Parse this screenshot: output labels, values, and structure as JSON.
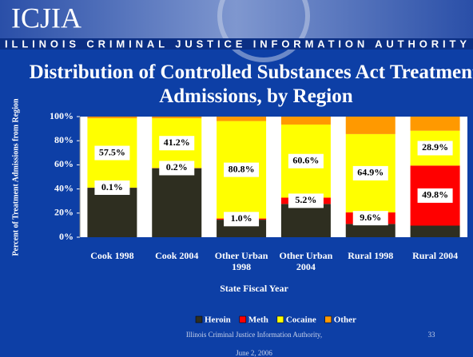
{
  "header": {
    "logo": "ICJIA",
    "organization": "ILLINOIS CRIMINAL JUSTICE INFORMATION AUTHORITY"
  },
  "chart_data": {
    "type": "stacked_bar",
    "title": "Distribution of Controlled Substances Act Treatment Admissions, by Region",
    "y_label": "Percent of Treatment Admissions from Region",
    "x_label": "State Fiscal Year",
    "categories": [
      "Cook 1998",
      "Cook 2004",
      "Other Urban 1998",
      "Other Urban 2004",
      "Rural 1998",
      "Rural 2004"
    ],
    "series": [
      {
        "name": "Heroin",
        "color": "#2e2e20",
        "values": [
          41.0,
          57.2,
          14.5,
          27.6,
          11.0,
          9.6
        ]
      },
      {
        "name": "Meth",
        "color": "#ff0000",
        "values": [
          0.1,
          0.2,
          1.0,
          5.2,
          9.6,
          49.8
        ],
        "value_labels": [
          "0.1%",
          "0.2%",
          "1.0%",
          "5.2%",
          "9.6%",
          "49.8%"
        ]
      },
      {
        "name": "Cocaine",
        "color": "#ffff00",
        "values": [
          57.5,
          41.2,
          80.8,
          60.6,
          64.9,
          28.9
        ],
        "value_labels": [
          "57.5%",
          "41.2%",
          "80.8%",
          "60.6%",
          "64.9%",
          "28.9%"
        ]
      },
      {
        "name": "Other",
        "color": "#ff9900",
        "values": [
          1.4,
          1.4,
          3.7,
          6.6,
          14.5,
          11.7
        ]
      }
    ],
    "ylim": [
      0,
      100
    ],
    "yticks": [
      {
        "value": 0,
        "label": "0%"
      },
      {
        "value": 20,
        "label": "20%"
      },
      {
        "value": 40,
        "label": "40%"
      },
      {
        "value": 60,
        "label": "60%"
      },
      {
        "value": 80,
        "label": "80%"
      },
      {
        "value": 100,
        "label": "100%"
      }
    ],
    "legend": "bottom"
  },
  "footer": {
    "source": "Illinois Criminal Justice Information Authority,",
    "date": "June 2, 2006",
    "page": "33"
  }
}
